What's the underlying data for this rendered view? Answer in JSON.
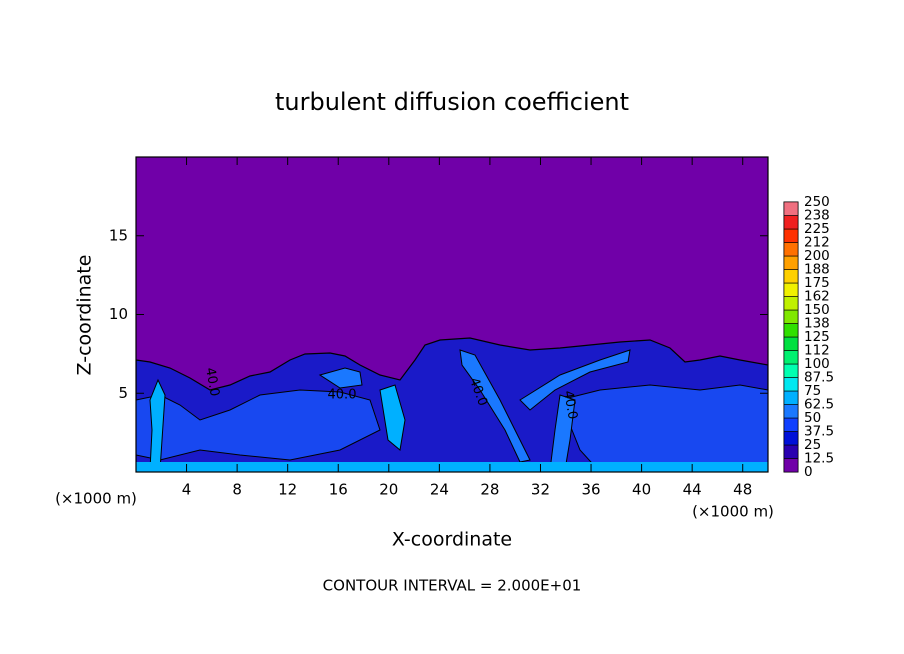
{
  "chart_data": {
    "type": "contour",
    "title": "turbulent diffusion coefficient",
    "x_label": "X-coordinate",
    "y_label": "Z-coordinate",
    "x_unit_label": "(×1000 m)",
    "footer": "CONTOUR INTERVAL = 2.000E+01",
    "xlim": [
      0,
      50
    ],
    "xticks": [
      4,
      8,
      12,
      16,
      20,
      24,
      28,
      32,
      36,
      40,
      44,
      48
    ],
    "ylim": [
      0,
      20
    ],
    "yticks": [
      5,
      10,
      15
    ],
    "contour_labels": [
      "40.0",
      "40.0",
      "40.0",
      "40.0"
    ],
    "colorbar": {
      "levels": [
        0,
        12.5,
        25,
        37.5,
        50,
        62.5,
        75,
        87.5,
        100,
        112,
        125,
        138,
        150,
        162,
        175,
        188,
        200,
        212,
        225,
        238,
        250
      ],
      "colors": [
        "#7000a8",
        "#2a00b0",
        "#0010d8",
        "#1040ff",
        "#1a78ff",
        "#00b0ff",
        "#00e8f0",
        "#00ffb0",
        "#00f070",
        "#00e040",
        "#30e000",
        "#80e800",
        "#c0f000",
        "#f0f000",
        "#ffd000",
        "#ffa000",
        "#ff7000",
        "#ff3000",
        "#f02020",
        "#f07080"
      ]
    }
  }
}
